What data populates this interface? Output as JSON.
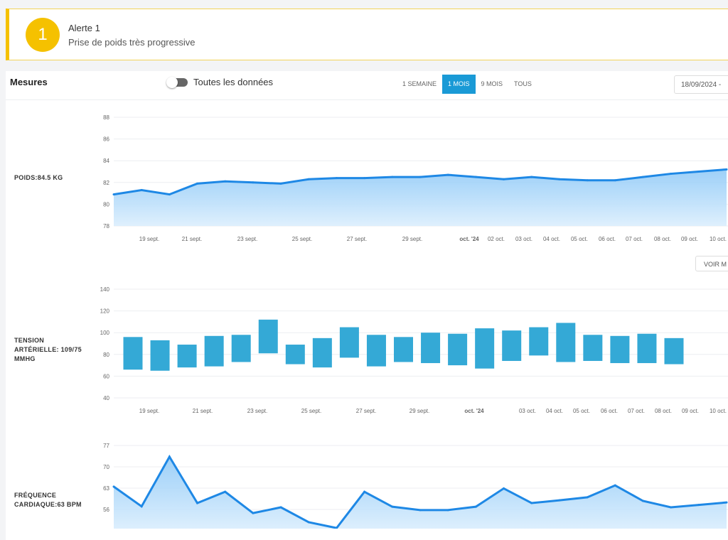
{
  "alert": {
    "number": "1",
    "title": "Alerte 1",
    "description": "Prise de poids très progressive"
  },
  "measures": {
    "title": "Mesures",
    "toggle_label": "Toutes les données",
    "toggle_on": false,
    "ranges": [
      {
        "label": "1 SEMAINE",
        "active": false
      },
      {
        "label": "1 MOIS",
        "active": true
      },
      {
        "label": "9 MOIS",
        "active": false
      },
      {
        "label": "TOUS",
        "active": false
      }
    ],
    "date_range": "18/09/2024 -",
    "see_more": "VOIR M",
    "accent": "#1a9ad6"
  },
  "metrics": {
    "weight": "POIDS:84.5 KG",
    "bp": "TENSION ARTÉRIELLE: 109/75 MMHG",
    "hr": "FRÉQUENCE CARDIAQUE:63 BPM"
  },
  "chart_data": [
    {
      "type": "area",
      "ylim": [
        78,
        88
      ],
      "yticks": [
        "88",
        "86",
        "84",
        "82",
        "80",
        "78"
      ],
      "xticks": [
        "19 sept.",
        "21 sept.",
        "23 sept.",
        "25 sept.",
        "27 sept.",
        "29 sept.",
        "oct. '24",
        "02 oct.",
        "03 oct.",
        "04 oct.",
        "05 oct.",
        "06 oct.",
        "07 oct.",
        "08 oct.",
        "09 oct.",
        "10 oct."
      ],
      "values": [
        80.9,
        81.3,
        80.9,
        81.9,
        82.1,
        82.0,
        81.9,
        82.3,
        82.4,
        82.4,
        82.5,
        82.5,
        82.7,
        82.5,
        82.3,
        82.5,
        82.3,
        82.2,
        82.2,
        82.5,
        82.8,
        83.0,
        83.2
      ],
      "color": "#1e88e5"
    },
    {
      "type": "bar",
      "ylim": [
        40,
        140
      ],
      "yticks": [
        "140",
        "120",
        "100",
        "80",
        "60",
        "40"
      ],
      "xticks": [
        "19 sept.",
        "21 sept.",
        "23 sept.",
        "25 sept.",
        "27 sept.",
        "29 sept.",
        "oct. '24",
        "03 oct.",
        "04 oct.",
        "05 oct.",
        "06 oct.",
        "07 oct.",
        "08 oct.",
        "09 oct.",
        "10 oct."
      ],
      "systolic": [
        96,
        93,
        89,
        97,
        98,
        112,
        89,
        95,
        105,
        98,
        96,
        100,
        99,
        104,
        102,
        105,
        109,
        98,
        97,
        99,
        95
      ],
      "diastolic": [
        66,
        65,
        68,
        69,
        73,
        81,
        71,
        68,
        77,
        69,
        73,
        72,
        70,
        67,
        74,
        79,
        73,
        74,
        72,
        72,
        71
      ],
      "color": "#34a9d6"
    },
    {
      "type": "area",
      "ylim": [
        49,
        77
      ],
      "yticks": [
        "77",
        "70",
        "63",
        "56"
      ],
      "values": [
        63.5,
        57.0,
        73.3,
        58.1,
        61.8,
        54.8,
        56.7,
        51.8,
        49.9,
        61.8,
        56.9,
        55.8,
        55.8,
        56.9,
        62.9,
        58.1,
        59.0,
        60.0,
        63.9,
        58.8,
        56.7,
        57.5,
        58.3
      ],
      "color": "#1e88e5"
    }
  ]
}
